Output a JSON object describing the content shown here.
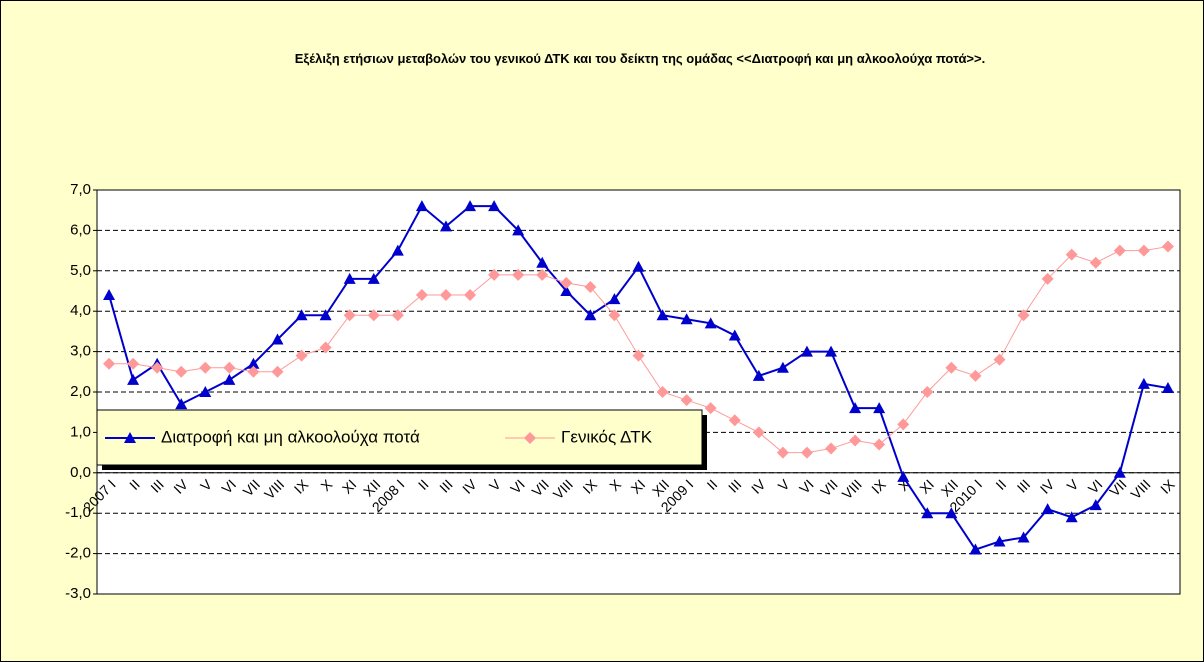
{
  "chart_data": {
    "type": "line",
    "title": "Εξέλιξη ετήσιων μεταβολών του γενικού ΔΤΚ και  του δείκτη της ομάδας <<Διατροφή και μη αλκοολούχα ποτά>>.",
    "categories": [
      "2007 I",
      "II",
      "III",
      "IV",
      "V",
      "VI",
      "VII",
      "VIII",
      "IX",
      "X",
      "XI",
      "XII",
      "2008 I",
      "II",
      "III",
      "IV",
      "V",
      "VI",
      "VII",
      "VIII",
      "IX",
      "X",
      "XI",
      "XII",
      "2009 I",
      "II",
      "III",
      "IV",
      "V",
      "VI",
      "VII",
      "VIII",
      "IX",
      "X",
      "XI",
      "XII",
      "2010 I",
      "II",
      "III",
      "IV",
      "V",
      "VI",
      "VII",
      "VIII",
      "IX"
    ],
    "series": [
      {
        "name": "Διατροφή και μη αλκοολούχα ποτά",
        "color": "#0000cc",
        "marker": "triangle",
        "values": [
          4.4,
          2.3,
          2.7,
          1.7,
          2.0,
          2.3,
          2.7,
          3.3,
          3.9,
          3.9,
          4.8,
          4.8,
          5.5,
          6.6,
          6.1,
          6.6,
          6.6,
          6.0,
          5.2,
          4.5,
          3.9,
          4.3,
          5.1,
          3.9,
          3.8,
          3.7,
          3.4,
          2.4,
          2.6,
          3.0,
          3.0,
          1.6,
          1.6,
          -0.1,
          -1.0,
          -1.0,
          -1.9,
          -1.7,
          -1.6,
          -0.9,
          -1.1,
          -0.8,
          0.0,
          2.2,
          2.1
        ]
      },
      {
        "name": "Γενικός ΔΤΚ",
        "color": "#ff9999",
        "marker": "diamond",
        "values": [
          2.7,
          2.7,
          2.6,
          2.5,
          2.6,
          2.6,
          2.5,
          2.5,
          2.9,
          3.1,
          3.9,
          3.9,
          3.9,
          4.4,
          4.4,
          4.4,
          4.9,
          4.9,
          4.9,
          4.7,
          4.6,
          3.9,
          2.9,
          2.0,
          1.8,
          1.6,
          1.3,
          1.0,
          0.5,
          0.5,
          0.6,
          0.8,
          0.7,
          1.2,
          2.0,
          2.6,
          2.4,
          2.8,
          3.9,
          4.8,
          5.4,
          5.2,
          5.5,
          5.5,
          5.6
        ]
      }
    ],
    "ylim": [
      -3,
      7
    ],
    "yticks": [
      {
        "value": -3,
        "label": "-3,0"
      },
      {
        "value": -2,
        "label": "-2,0"
      },
      {
        "value": -1,
        "label": "-1,0"
      },
      {
        "value": 0,
        "label": "0,0"
      },
      {
        "value": 1,
        "label": "1,0"
      },
      {
        "value": 2,
        "label": "2,0"
      },
      {
        "value": 3,
        "label": "3,0"
      },
      {
        "value": 4,
        "label": "4,0"
      },
      {
        "value": 5,
        "label": "5,0"
      },
      {
        "value": 6,
        "label": "6,0"
      },
      {
        "value": 7,
        "label": "7,0"
      }
    ],
    "grid": true
  }
}
